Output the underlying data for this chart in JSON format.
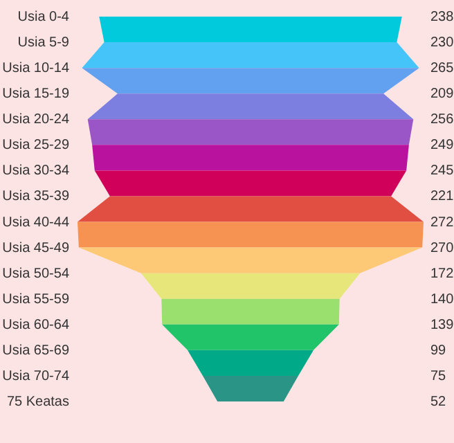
{
  "chart_data": {
    "type": "other",
    "categories": [
      "Usia 0-4",
      "Usia 5-9",
      "Usia 10-14",
      "Usia 15-19",
      "Usia 20-24",
      "Usia 25-29",
      "Usia 30-34",
      "Usia 35-39",
      "Usia 40-44",
      "Usia 45-49",
      "Usia 50-54",
      "Usia 55-59",
      "Usia 60-64",
      "Usia 65-69",
      "Usia 70-74",
      "75 Keatas"
    ],
    "values": [
      238,
      230,
      265,
      209,
      256,
      249,
      245,
      221,
      272,
      270,
      172,
      140,
      139,
      99,
      75,
      52
    ],
    "colors": [
      "#00cadb",
      "#45c4fa",
      "#62a0f0",
      "#7c7ee0",
      "#9a55c6",
      "#b8129e",
      "#d0005a",
      "#e04f42",
      "#f79352",
      "#fdc976",
      "#e6e67a",
      "#9ae06f",
      "#22c469",
      "#00aa88",
      "#2a9487",
      null
    ],
    "data_labels": true
  }
}
